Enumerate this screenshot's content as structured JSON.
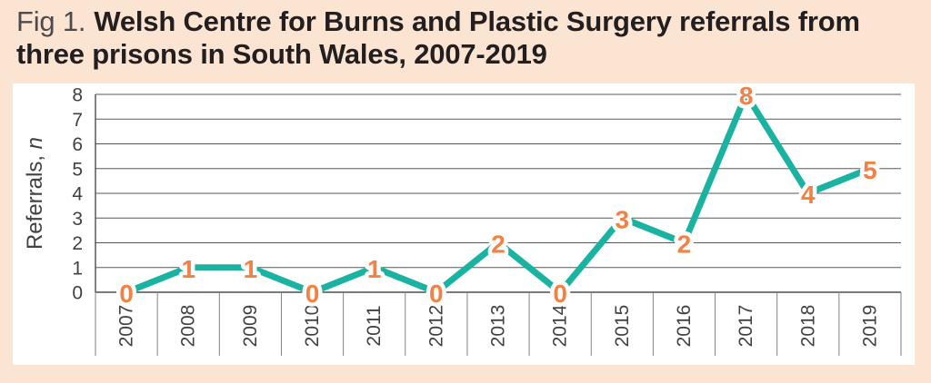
{
  "figure": {
    "label": "Fig 1.",
    "title": "Welsh Centre for Burns and Plastic Surgery referrals from three prisons in South Wales, 2007-2019"
  },
  "chart_data": {
    "type": "line",
    "title": "Welsh Centre for Burns and Plastic Surgery referrals from three prisons in South Wales, 2007-2019",
    "categories": [
      "2007",
      "2008",
      "2009",
      "2010",
      "2011",
      "2012",
      "2013",
      "2014",
      "2015",
      "2016",
      "2017",
      "2018",
      "2019"
    ],
    "series": [
      {
        "name": "Referrals",
        "values": [
          0,
          1,
          1,
          0,
          1,
          0,
          2,
          0,
          3,
          2,
          8,
          4,
          5
        ]
      }
    ],
    "xlabel": "",
    "ylabel": "Referrals, n",
    "ylabel_prefix": "Referrals, ",
    "ylabel_italic": "n",
    "ylim": [
      0,
      8
    ],
    "yticks": [
      0,
      1,
      2,
      3,
      4,
      5,
      6,
      7,
      8
    ],
    "grid": true,
    "legend": false,
    "data_labels": true,
    "colors": {
      "line": "#1ab2a0",
      "data_label": "#f08246",
      "data_label_halo": "#ffffff",
      "grid": "#58585a",
      "axis": "#4d4e50",
      "separator": "#808285",
      "tick_text": "#414042",
      "background": "#fce4d3",
      "panel": "#ffffff",
      "title_text": "#231f20",
      "fig_label_text": "#4b4b4d"
    }
  }
}
